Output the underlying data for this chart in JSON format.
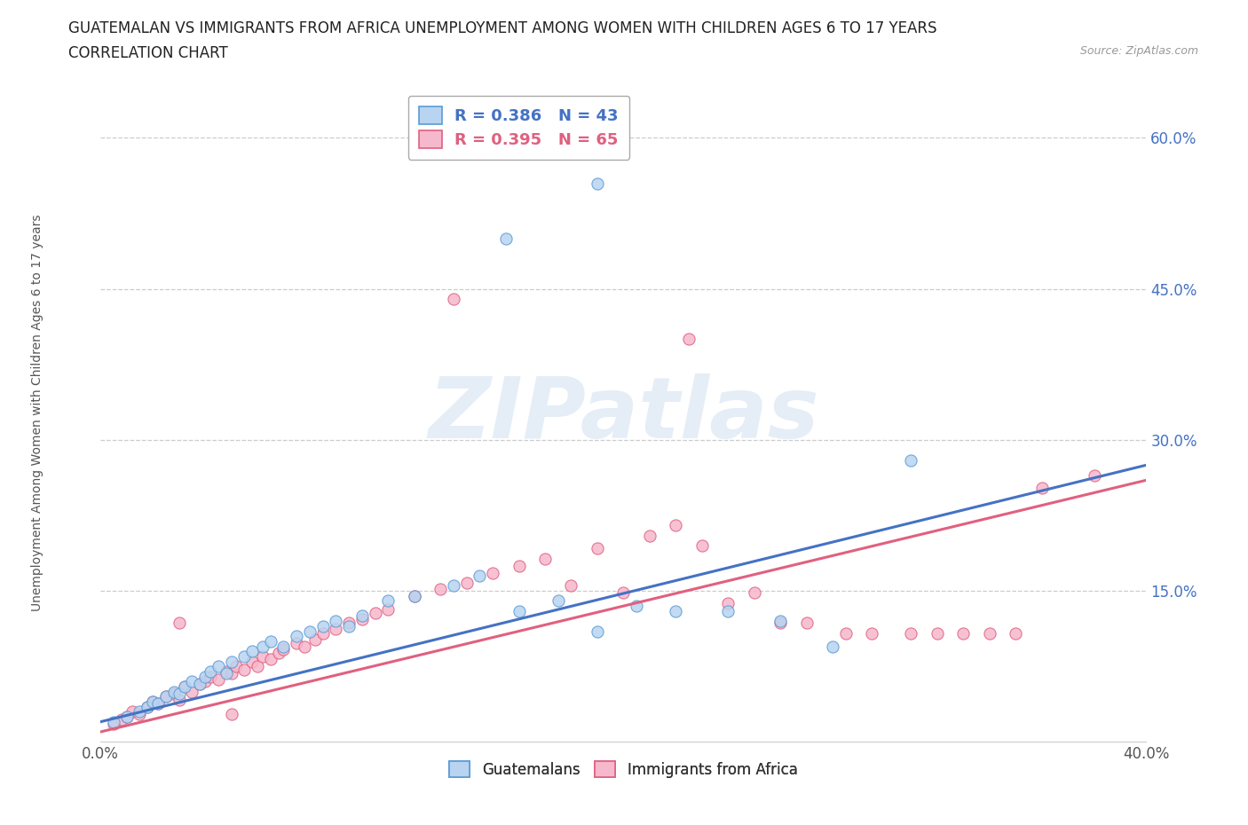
{
  "title_line1": "GUATEMALAN VS IMMIGRANTS FROM AFRICA UNEMPLOYMENT AMONG WOMEN WITH CHILDREN AGES 6 TO 17 YEARS",
  "title_line2": "CORRELATION CHART",
  "source_text": "Source: ZipAtlas.com",
  "ylabel": "Unemployment Among Women with Children Ages 6 to 17 years",
  "xlim": [
    0.0,
    0.4
  ],
  "ylim": [
    0.0,
    0.65
  ],
  "xticks": [
    0.0,
    0.05,
    0.1,
    0.15,
    0.2,
    0.25,
    0.3,
    0.35,
    0.4
  ],
  "xtick_labels": [
    "0.0%",
    "",
    "",
    "",
    "",
    "",
    "",
    "",
    "40.0%"
  ],
  "yticks": [
    0.0,
    0.15,
    0.3,
    0.45,
    0.6
  ],
  "ytick_labels": [
    "",
    "15.0%",
    "30.0%",
    "45.0%",
    "60.0%"
  ],
  "grid_yticks": [
    0.15,
    0.3,
    0.45,
    0.6
  ],
  "blue_color": "#b8d4f0",
  "pink_color": "#f5b8cc",
  "blue_edge_color": "#5b9bd5",
  "pink_edge_color": "#e06080",
  "blue_line_color": "#4472c4",
  "pink_line_color": "#e06080",
  "legend_label_blue": "R = 0.386   N = 43",
  "legend_label_pink": "R = 0.395   N = 65",
  "legend_label_guatemalans": "Guatemalans",
  "legend_label_africa": "Immigrants from Africa",
  "watermark_text": "ZIPatlas",
  "blue_scatter_x": [
    0.005,
    0.01,
    0.015,
    0.018,
    0.02,
    0.022,
    0.025,
    0.028,
    0.03,
    0.032,
    0.035,
    0.038,
    0.04,
    0.042,
    0.045,
    0.048,
    0.05,
    0.055,
    0.058,
    0.062,
    0.065,
    0.07,
    0.075,
    0.08,
    0.085,
    0.09,
    0.095,
    0.1,
    0.11,
    0.12,
    0.135,
    0.145,
    0.16,
    0.175,
    0.19,
    0.205,
    0.22,
    0.24,
    0.26,
    0.31,
    0.155,
    0.19,
    0.28
  ],
  "blue_scatter_y": [
    0.02,
    0.025,
    0.03,
    0.035,
    0.04,
    0.038,
    0.045,
    0.05,
    0.048,
    0.055,
    0.06,
    0.058,
    0.065,
    0.07,
    0.075,
    0.068,
    0.08,
    0.085,
    0.09,
    0.095,
    0.1,
    0.095,
    0.105,
    0.11,
    0.115,
    0.12,
    0.115,
    0.125,
    0.14,
    0.145,
    0.155,
    0.165,
    0.13,
    0.14,
    0.11,
    0.135,
    0.13,
    0.13,
    0.12,
    0.28,
    0.5,
    0.555,
    0.095
  ],
  "pink_scatter_x": [
    0.005,
    0.008,
    0.01,
    0.012,
    0.015,
    0.018,
    0.02,
    0.022,
    0.025,
    0.028,
    0.03,
    0.032,
    0.035,
    0.038,
    0.04,
    0.042,
    0.045,
    0.048,
    0.05,
    0.052,
    0.055,
    0.058,
    0.06,
    0.062,
    0.065,
    0.068,
    0.07,
    0.075,
    0.078,
    0.082,
    0.085,
    0.09,
    0.095,
    0.1,
    0.105,
    0.11,
    0.12,
    0.13,
    0.14,
    0.15,
    0.16,
    0.17,
    0.18,
    0.19,
    0.2,
    0.21,
    0.22,
    0.23,
    0.24,
    0.25,
    0.26,
    0.27,
    0.285,
    0.295,
    0.31,
    0.32,
    0.33,
    0.34,
    0.35,
    0.36,
    0.135,
    0.225,
    0.38,
    0.03,
    0.05
  ],
  "pink_scatter_y": [
    0.018,
    0.022,
    0.025,
    0.03,
    0.028,
    0.035,
    0.04,
    0.038,
    0.045,
    0.048,
    0.042,
    0.055,
    0.05,
    0.058,
    0.06,
    0.065,
    0.062,
    0.07,
    0.068,
    0.075,
    0.072,
    0.08,
    0.075,
    0.085,
    0.082,
    0.088,
    0.092,
    0.098,
    0.095,
    0.102,
    0.108,
    0.112,
    0.118,
    0.122,
    0.128,
    0.132,
    0.145,
    0.152,
    0.158,
    0.168,
    0.175,
    0.182,
    0.155,
    0.192,
    0.148,
    0.205,
    0.215,
    0.195,
    0.138,
    0.148,
    0.118,
    0.118,
    0.108,
    0.108,
    0.108,
    0.108,
    0.108,
    0.108,
    0.108,
    0.252,
    0.44,
    0.4,
    0.265,
    0.118,
    0.028
  ]
}
